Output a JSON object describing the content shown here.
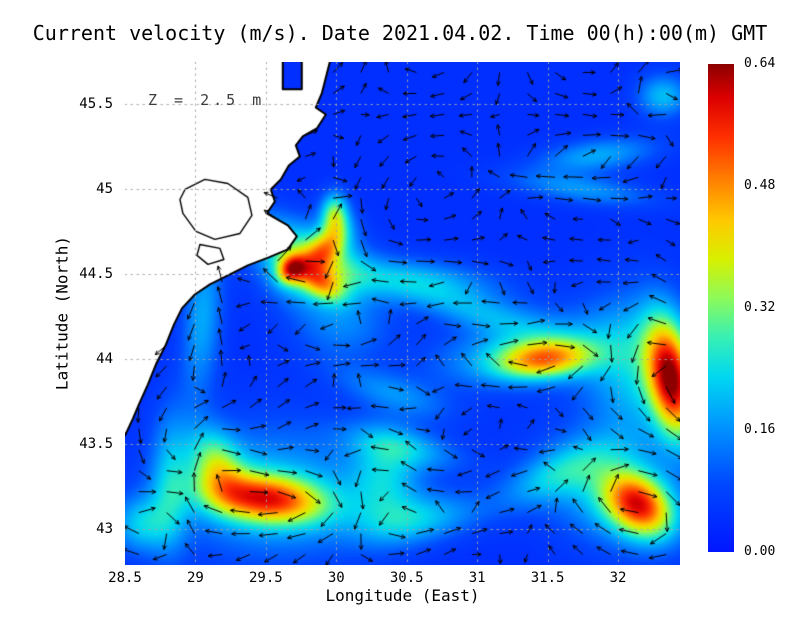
{
  "title": "Current velocity (m/s). Date 2021.04.02. Time 00(h):00(m) GMT",
  "annotation": "Z = 2.5 m",
  "xlabel": "Longitude (East)",
  "ylabel": "Latitude (North)",
  "colorbar": {
    "min": 0.0,
    "max": 0.64,
    "units": "m/s",
    "ticks": [
      "0.64",
      "0.48",
      "0.32",
      "0.16",
      "0.00"
    ],
    "stops": [
      {
        "t": 0.0,
        "color": "#0016ff"
      },
      {
        "t": 0.14,
        "color": "#0048ff"
      },
      {
        "t": 0.26,
        "color": "#0096ff"
      },
      {
        "t": 0.36,
        "color": "#00d8f0"
      },
      {
        "t": 0.44,
        "color": "#38f0b4"
      },
      {
        "t": 0.52,
        "color": "#8cfa5a"
      },
      {
        "t": 0.6,
        "color": "#d8f000"
      },
      {
        "t": 0.68,
        "color": "#ffc800"
      },
      {
        "t": 0.76,
        "color": "#ff8200"
      },
      {
        "t": 0.85,
        "color": "#ff3000"
      },
      {
        "t": 0.93,
        "color": "#dc0000"
      },
      {
        "t": 1.0,
        "color": "#8c0000"
      }
    ]
  },
  "chart_data": {
    "type": "heatmap",
    "subtype": "vector-field",
    "title": "Current velocity (m/s). Date 2021.04.02. Time 00(h):00(m) GMT",
    "date": "2021.04.02",
    "time": "00(h):00(m) GMT",
    "depth_m": 2.5,
    "units": "m/s",
    "xlabel": "Longitude (East)",
    "ylabel": "Latitude (North)",
    "xlim": [
      28.5,
      32.44
    ],
    "ylim": [
      42.79,
      45.75
    ],
    "xticks": [
      28.5,
      29,
      29.5,
      30,
      30.5,
      31,
      31.5,
      32
    ],
    "yticks": [
      43,
      43.5,
      44,
      44.5,
      45,
      45.5
    ],
    "grid": "dotted",
    "base_speed": 0.045,
    "speed_min": 0.0,
    "speed_max": 0.64,
    "features": [
      [
        29.85,
        44.55,
        0.26,
        0.22,
        0.15,
        0,
        1
      ],
      [
        29.68,
        44.53,
        0.3,
        0.07,
        0.055,
        20,
        1
      ],
      [
        29.93,
        44.66,
        0.22,
        0.13,
        0.07,
        35,
        1
      ],
      [
        29.9,
        44.44,
        0.18,
        0.12,
        0.06,
        -25,
        1
      ],
      [
        29.55,
        44.72,
        0.13,
        0.2,
        0.12,
        -20,
        -1
      ],
      [
        29.05,
        44.25,
        0.14,
        0.1,
        0.35,
        -5,
        -1
      ],
      [
        29.99,
        44.85,
        0.28,
        0.07,
        0.09,
        0,
        1
      ],
      [
        30.5,
        44.47,
        0.16,
        0.45,
        0.09,
        -4,
        1
      ],
      [
        31.0,
        44.28,
        0.12,
        0.35,
        0.08,
        -12,
        -1
      ],
      [
        31.48,
        44.0,
        0.35,
        0.24,
        0.08,
        4,
        1
      ],
      [
        31.3,
        44.05,
        0.14,
        0.45,
        0.14,
        8,
        1
      ],
      [
        32.38,
        43.88,
        0.5,
        0.11,
        0.24,
        12,
        -1
      ],
      [
        32.15,
        43.95,
        0.18,
        0.28,
        0.3,
        10,
        -1
      ],
      [
        31.85,
        45.2,
        0.14,
        0.3,
        0.07,
        6,
        1
      ],
      [
        31.75,
        45.0,
        0.12,
        0.35,
        0.06,
        -6,
        -1
      ],
      [
        32.32,
        45.55,
        0.16,
        0.13,
        0.09,
        0,
        1
      ],
      [
        29.5,
        43.18,
        0.4,
        0.3,
        0.1,
        -5,
        1
      ],
      [
        29.15,
        43.38,
        0.22,
        0.12,
        0.16,
        35,
        1
      ],
      [
        29.55,
        43.22,
        0.15,
        0.5,
        0.28,
        0,
        1
      ],
      [
        30.35,
        43.3,
        0.15,
        0.18,
        0.2,
        0,
        -1
      ],
      [
        30.6,
        43.06,
        0.15,
        0.3,
        0.1,
        8,
        -1
      ],
      [
        30.5,
        43.48,
        0.12,
        0.3,
        0.08,
        -10,
        1
      ],
      [
        32.15,
        43.14,
        0.42,
        0.18,
        0.12,
        -25,
        1
      ],
      [
        31.95,
        43.22,
        0.16,
        0.35,
        0.22,
        -15,
        1
      ],
      [
        31.55,
        43.32,
        0.13,
        0.3,
        0.1,
        20,
        -1
      ],
      [
        28.82,
        43.3,
        0.13,
        0.1,
        0.3,
        0,
        -1
      ],
      [
        28.62,
        43.03,
        0.16,
        0.15,
        0.12,
        0,
        1
      ],
      [
        30.4,
        43.8,
        0.1,
        0.3,
        0.08,
        -15,
        1
      ],
      [
        30.05,
        44.2,
        0.1,
        0.25,
        0.15,
        0,
        -1
      ]
    ],
    "coastline": [
      [
        28.5,
        45.75
      ],
      [
        29.62,
        45.75
      ],
      [
        29.62,
        45.59
      ],
      [
        29.755,
        45.59
      ],
      [
        29.755,
        45.75
      ],
      [
        29.954,
        45.75
      ],
      [
        29.897,
        45.565
      ],
      [
        29.854,
        45.482
      ],
      [
        29.926,
        45.441
      ],
      [
        29.862,
        45.359
      ],
      [
        29.762,
        45.312
      ],
      [
        29.713,
        45.259
      ],
      [
        29.741,
        45.194
      ],
      [
        29.663,
        45.141
      ],
      [
        29.606,
        45.059
      ],
      [
        29.535,
        45.0
      ],
      [
        29.564,
        44.929
      ],
      [
        29.507,
        44.859
      ],
      [
        29.656,
        44.788
      ],
      [
        29.72,
        44.724
      ],
      [
        29.656,
        44.647
      ],
      [
        29.521,
        44.6
      ],
      [
        29.372,
        44.553
      ],
      [
        29.245,
        44.5
      ],
      [
        29.103,
        44.441
      ],
      [
        28.996,
        44.382
      ],
      [
        28.904,
        44.3
      ],
      [
        28.848,
        44.206
      ],
      [
        28.791,
        44.088
      ],
      [
        28.72,
        43.971
      ],
      [
        28.663,
        43.853
      ],
      [
        28.599,
        43.735
      ],
      [
        28.557,
        43.653
      ],
      [
        28.514,
        43.576
      ],
      [
        28.5,
        43.553
      ]
    ],
    "coast_stroke": [
      [
        [
          29.62,
          45.75
        ],
        [
          29.62,
          45.59
        ],
        [
          29.755,
          45.59
        ],
        [
          29.755,
          45.75
        ]
      ],
      [
        [
          29.954,
          45.75
        ],
        [
          29.897,
          45.565
        ],
        [
          29.854,
          45.482
        ],
        [
          29.926,
          45.441
        ],
        [
          29.862,
          45.359
        ],
        [
          29.762,
          45.312
        ],
        [
          29.713,
          45.259
        ],
        [
          29.741,
          45.194
        ],
        [
          29.663,
          45.141
        ],
        [
          29.606,
          45.059
        ],
        [
          29.535,
          45.0
        ],
        [
          29.564,
          44.929
        ],
        [
          29.507,
          44.859
        ],
        [
          29.656,
          44.788
        ],
        [
          29.72,
          44.724
        ],
        [
          29.656,
          44.647
        ],
        [
          29.521,
          44.6
        ],
        [
          29.372,
          44.553
        ],
        [
          29.245,
          44.5
        ],
        [
          29.103,
          44.441
        ],
        [
          28.996,
          44.382
        ],
        [
          28.904,
          44.3
        ],
        [
          28.848,
          44.206
        ],
        [
          28.791,
          44.088
        ],
        [
          28.72,
          43.971
        ],
        [
          28.663,
          43.853
        ],
        [
          28.599,
          43.735
        ],
        [
          28.557,
          43.653
        ],
        [
          28.514,
          43.576
        ],
        [
          28.5,
          43.553
        ]
      ]
    ],
    "lakes": [
      [
        [
          28.926,
          45.0
        ],
        [
          29.067,
          45.059
        ],
        [
          29.23,
          45.035
        ],
        [
          29.372,
          44.953
        ],
        [
          29.401,
          44.847
        ],
        [
          29.316,
          44.741
        ],
        [
          29.138,
          44.706
        ],
        [
          29.004,
          44.753
        ],
        [
          28.911,
          44.859
        ],
        [
          28.89,
          44.941
        ]
      ],
      [
        [
          29.032,
          44.676
        ],
        [
          29.174,
          44.653
        ],
        [
          29.202,
          44.588
        ],
        [
          29.089,
          44.559
        ],
        [
          29.011,
          44.612
        ]
      ]
    ],
    "quiver": {
      "cols": 20,
      "rows": 24
    }
  }
}
